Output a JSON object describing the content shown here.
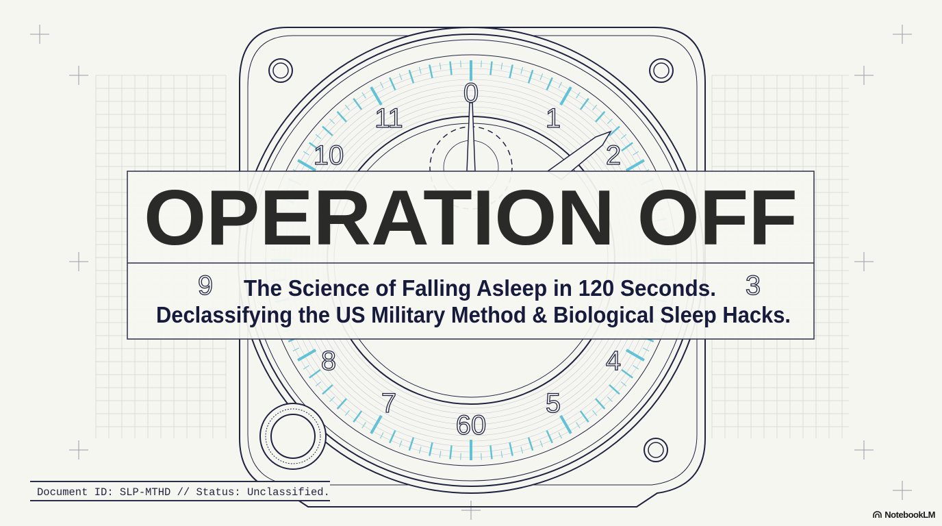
{
  "slide": {
    "title": "OPERATION OFF",
    "subtitle_lines": [
      "The Science of Falling Asleep in 120 Seconds.",
      "Declassifying the US Military Method & Biological Sleep Hacks."
    ],
    "document_id": "Document ID: SLP-MTHD // Status: Unclassified.",
    "brand": "NotebookLM",
    "brand_icon": "notebooklm-logo-icon"
  },
  "dial": {
    "numbers": [
      "0",
      "1",
      "2",
      "3",
      "4",
      "5",
      "60",
      "7",
      "8",
      "9",
      "10",
      "11"
    ],
    "icon": "stopwatch-gauge-illustration"
  },
  "colors": {
    "background": "#f6f6f1",
    "line": "#1f2240",
    "accent": "#5cc4d6",
    "title": "#2a2a28",
    "subtitle": "#161a3c",
    "grid": "#dcdcd6"
  }
}
